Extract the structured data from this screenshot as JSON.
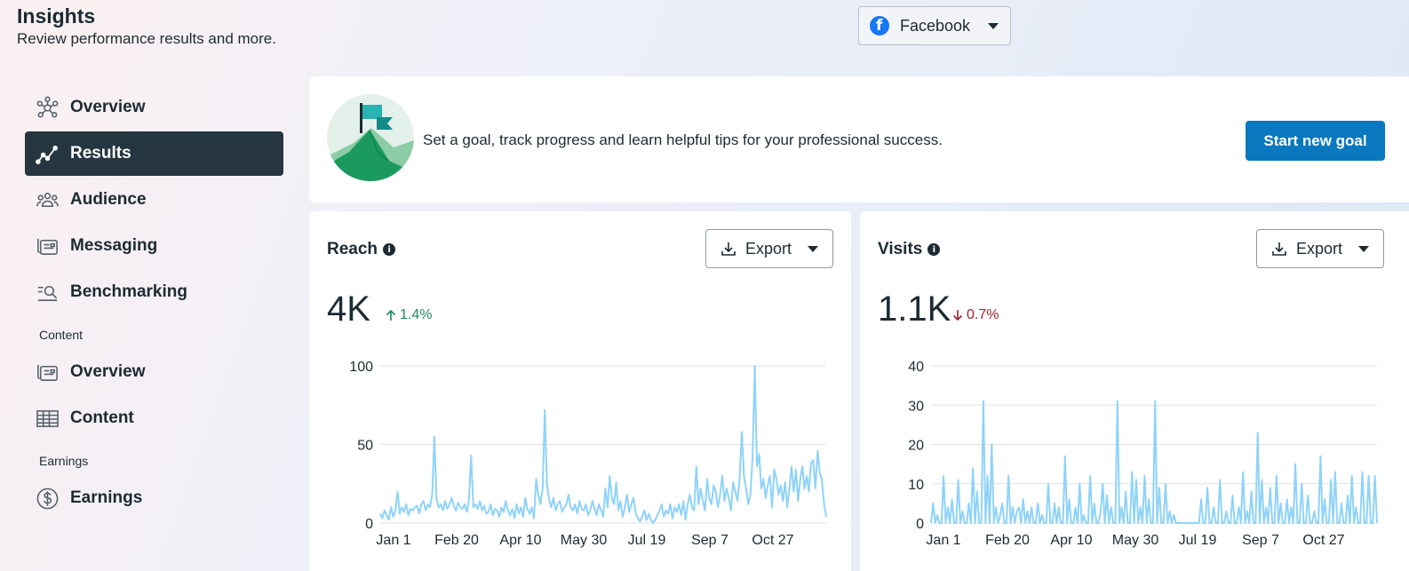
{
  "header": {
    "title": "Insights",
    "subtitle": "Review performance results and more."
  },
  "platform_selector": {
    "label": "Facebook",
    "icon": "facebook-icon"
  },
  "sidebar": {
    "items": [
      {
        "label": "Overview",
        "icon": "overview-network-icon",
        "active": false
      },
      {
        "label": "Results",
        "icon": "results-line-icon",
        "active": true
      },
      {
        "label": "Audience",
        "icon": "audience-icon",
        "active": false
      },
      {
        "label": "Messaging",
        "icon": "messaging-icon",
        "active": false
      },
      {
        "label": "Benchmarking",
        "icon": "benchmarking-icon",
        "active": false
      }
    ],
    "content_section": {
      "heading": "Content",
      "items": [
        {
          "label": "Overview",
          "icon": "content-overview-icon"
        },
        {
          "label": "Content",
          "icon": "table-icon"
        }
      ]
    },
    "earnings_section": {
      "heading": "Earnings",
      "items": [
        {
          "label": "Earnings",
          "icon": "dollar-icon"
        }
      ]
    }
  },
  "goal_card": {
    "text": "Set a goal, track progress and learn helpful tips for your professional success.",
    "button": "Start new goal"
  },
  "reach": {
    "title": "Reach",
    "export_label": "Export",
    "value": "4K",
    "delta": "1.4%",
    "delta_direction": "up"
  },
  "visits": {
    "title": "Visits",
    "export_label": "Export",
    "value": "1.1K",
    "delta": "0.7%",
    "delta_direction": "down"
  },
  "colors": {
    "accent": "#0a78be",
    "active_nav": "#263640",
    "line": "#8fd3f8",
    "up": "#1d8a5a",
    "down": "#a1222f"
  },
  "chart_data": [
    {
      "type": "line",
      "name": "reach",
      "x_ticks": [
        "Jan 1",
        "Feb 20",
        "Apr 10",
        "May 30",
        "Jul 19",
        "Sep 7",
        "Oct 27"
      ],
      "ylim": [
        0,
        100
      ],
      "y_ticks": [
        0,
        50,
        100
      ],
      "grid": true,
      "values": [
        6,
        3,
        8,
        5,
        2,
        10,
        4,
        8,
        20,
        6,
        10,
        7,
        12,
        5,
        9,
        8,
        10,
        11,
        6,
        12,
        14,
        8,
        12,
        10,
        18,
        55,
        15,
        10,
        12,
        8,
        14,
        9,
        12,
        16,
        11,
        8,
        13,
        10,
        9,
        12,
        7,
        15,
        43,
        10,
        12,
        9,
        14,
        8,
        11,
        6,
        7,
        12,
        5,
        9,
        8,
        4,
        10,
        7,
        14,
        8,
        5,
        9,
        3,
        12,
        6,
        10,
        4,
        16,
        9,
        6,
        10,
        3,
        28,
        18,
        12,
        22,
        72,
        25,
        15,
        10,
        16,
        8,
        12,
        14,
        7,
        10,
        12,
        18,
        10,
        8,
        12,
        6,
        14,
        9,
        8,
        12,
        5,
        8,
        14,
        9,
        5,
        12,
        8,
        4,
        22,
        10,
        30,
        16,
        12,
        26,
        8,
        14,
        4,
        10,
        18,
        7,
        12,
        16,
        6,
        3,
        1,
        4,
        8,
        2,
        6,
        2,
        0,
        2,
        5,
        8,
        12,
        4,
        8,
        6,
        12,
        3,
        10,
        7,
        12,
        5,
        14,
        2,
        12,
        18,
        10,
        8,
        36,
        12,
        22,
        14,
        8,
        28,
        16,
        12,
        24,
        20,
        10,
        18,
        30,
        14,
        22,
        16,
        8,
        26,
        20,
        14,
        28,
        58,
        30,
        22,
        12,
        18,
        42,
        100,
        36,
        44,
        22,
        28,
        16,
        24,
        30,
        10,
        34,
        28,
        18,
        24,
        14,
        26,
        10,
        22,
        36,
        20,
        34,
        14,
        28,
        36,
        22,
        30,
        20,
        38,
        40,
        22,
        46,
        32,
        28,
        12,
        4
      ]
    },
    {
      "type": "line",
      "name": "visits",
      "x_ticks": [
        "Jan 1",
        "Feb 20",
        "Apr 10",
        "May 30",
        "Jul 19",
        "Sep 7",
        "Oct 27"
      ],
      "ylim": [
        0,
        40
      ],
      "y_ticks": [
        0,
        10,
        20,
        30,
        40
      ],
      "grid": true,
      "values": [
        0,
        5,
        0,
        2,
        0,
        0,
        12,
        0,
        4,
        0,
        6,
        0,
        0,
        11,
        0,
        3,
        0,
        0,
        5,
        0,
        14,
        0,
        8,
        0,
        0,
        31,
        0,
        12,
        0,
        20,
        0,
        4,
        0,
        2,
        5,
        0,
        0,
        12,
        0,
        4,
        0,
        3,
        4,
        0,
        6,
        0,
        3,
        0,
        4,
        0,
        0,
        5,
        0,
        2,
        0,
        0,
        10,
        0,
        0,
        5,
        0,
        4,
        0,
        0,
        17,
        0,
        6,
        0,
        0,
        4,
        0,
        10,
        0,
        2,
        0,
        0,
        12,
        0,
        5,
        0,
        0,
        3,
        10,
        0,
        7,
        0,
        4,
        0,
        0,
        31,
        0,
        4,
        0,
        8,
        0,
        0,
        13,
        0,
        11,
        0,
        4,
        0,
        12,
        0,
        6,
        0,
        0,
        31,
        0,
        9,
        0,
        0,
        10,
        0,
        3,
        0,
        2,
        0,
        0,
        0,
        0,
        0,
        0,
        0,
        0,
        0,
        0,
        0,
        0,
        6,
        0,
        0,
        9,
        0,
        0,
        4,
        0,
        0,
        11,
        0,
        0,
        3,
        0,
        0,
        7,
        0,
        0,
        4,
        0,
        13,
        0,
        3,
        0,
        8,
        0,
        0,
        23,
        0,
        11,
        0,
        4,
        0,
        9,
        0,
        0,
        12,
        0,
        5,
        0,
        0,
        6,
        0,
        4,
        0,
        15,
        0,
        0,
        10,
        0,
        0,
        7,
        0,
        0,
        3,
        0,
        0,
        17,
        0,
        6,
        0,
        0,
        11,
        0,
        13,
        0,
        0,
        5,
        0,
        0,
        7,
        0,
        12,
        0,
        4,
        0,
        0,
        13,
        0,
        0,
        12,
        0,
        0,
        12,
        0
      ]
    }
  ]
}
